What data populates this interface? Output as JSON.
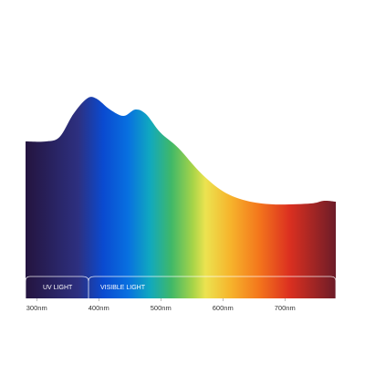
{
  "chart_data": {
    "type": "area",
    "x": [
      282,
      315,
      337,
      359,
      381,
      396,
      418,
      440,
      459,
      476,
      499,
      528,
      565,
      601,
      638,
      682,
      741,
      763,
      782
    ],
    "values": [
      86,
      86,
      88.5,
      101,
      109.5,
      109.5,
      103.5,
      100,
      103.5,
      101,
      91,
      82.5,
      68.5,
      58.5,
      53.5,
      51.5,
      52,
      53.5,
      53
    ],
    "xlim": [
      282,
      782
    ],
    "ylim": [
      0,
      110
    ],
    "xticks": [
      {
        "value": 300,
        "label": "300nm"
      },
      {
        "value": 400,
        "label": "400nm"
      },
      {
        "value": 500,
        "label": "500nm"
      },
      {
        "value": 600,
        "label": "600nm"
      },
      {
        "value": 700,
        "label": "700nm"
      }
    ],
    "annotations": [
      "UV LIGHT",
      "VISIBLE LIGHT"
    ]
  }
}
